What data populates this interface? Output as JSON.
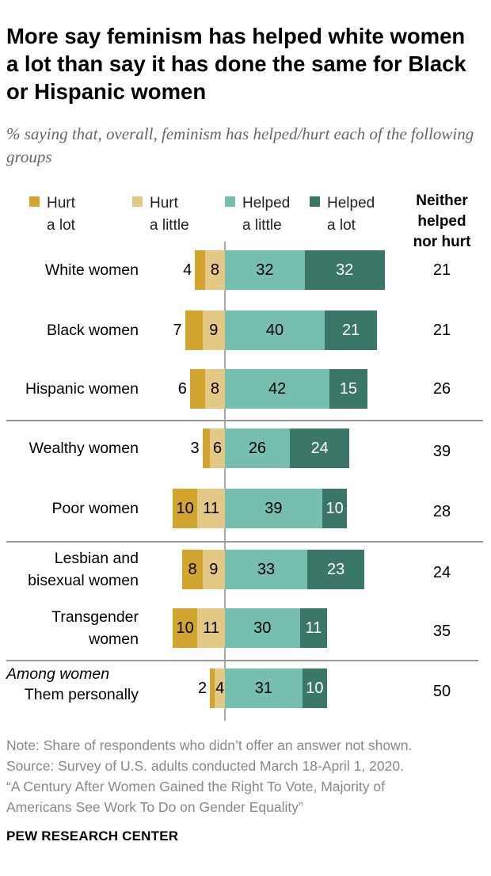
{
  "title": "More say feminism has helped white women a lot than say it has done the same for Black or Hispanic women",
  "subtitle": "% saying that, overall, feminism has helped/hurt each of the following groups",
  "colors": {
    "hurt_a_lot": "#D2A52E",
    "hurt_a_little": "#E3C985",
    "helped_a_little": "#76BFAF",
    "helped_a_lot": "#3A7768"
  },
  "chart_data": {
    "type": "bar",
    "orientation": "horizontal-diverging",
    "legend": [
      "Hurt\na lot",
      "Hurt\na little",
      "Helped\na little",
      "Helped\na lot"
    ],
    "extra_column_header": "Neither helped nor hurt",
    "group_label": "Among women",
    "categories": [
      "White women",
      "Black women",
      "Hispanic women",
      "Wealthy women",
      "Poor women",
      "Lesbian and bisexual women",
      "Transgender women",
      "Them personally"
    ],
    "series": [
      {
        "name": "Hurt a lot",
        "values": [
          4,
          7,
          6,
          3,
          10,
          8,
          10,
          2
        ]
      },
      {
        "name": "Hurt a little",
        "values": [
          8,
          9,
          8,
          6,
          11,
          9,
          11,
          4
        ]
      },
      {
        "name": "Helped a little",
        "values": [
          32,
          40,
          42,
          26,
          39,
          33,
          30,
          31
        ]
      },
      {
        "name": "Helped a lot",
        "values": [
          32,
          21,
          15,
          24,
          10,
          23,
          11,
          10
        ]
      }
    ],
    "neither": [
      21,
      21,
      26,
      39,
      28,
      24,
      35,
      50
    ]
  },
  "notes": [
    "Note: Share of respondents who didn’t offer an answer not shown.",
    "Source: Survey of U.S. adults conducted March 18-April 1, 2020.",
    "“A Century After Women Gained the Right To Vote, Majority of",
    "Americans See Work To Do on Gender Equality”"
  ],
  "source_org": "PEW RESEARCH CENTER"
}
